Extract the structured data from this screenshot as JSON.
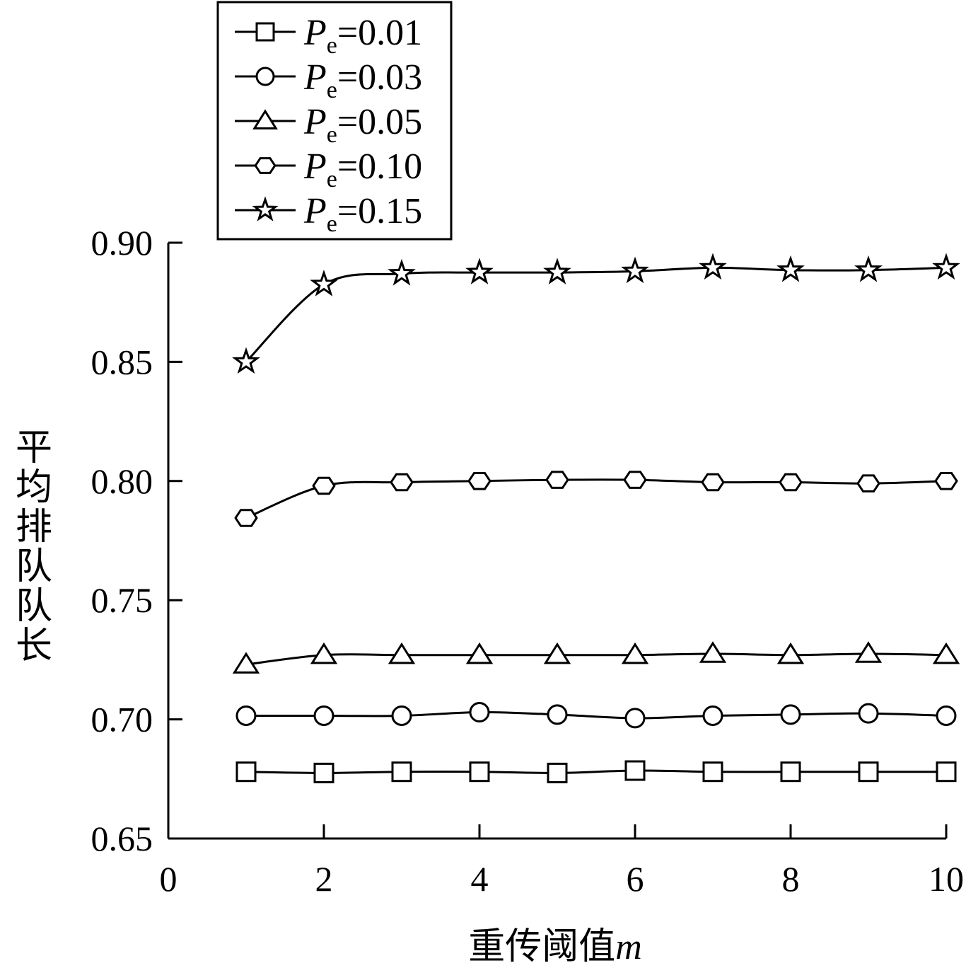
{
  "chart_data": {
    "type": "line",
    "title": "",
    "xlabel_text": "重传阈值",
    "xlabel_var": "m",
    "ylabel": "平均排队队长",
    "xlim": [
      0,
      10
    ],
    "ylim": [
      0.65,
      0.9
    ],
    "xticks": [
      0,
      2,
      4,
      6,
      8,
      10
    ],
    "yticks": [
      "0.65",
      "0.70",
      "0.75",
      "0.80",
      "0.85",
      "0.90"
    ],
    "grid": false,
    "legend_position": "top-left",
    "x": [
      1,
      2,
      3,
      4,
      5,
      6,
      7,
      8,
      9,
      10
    ],
    "series": [
      {
        "name": "Pe=0.01",
        "name_var": "P",
        "name_sub": "e",
        "name_rest": "=0.01",
        "marker": "square",
        "values": [
          0.678,
          0.6775,
          0.678,
          0.678,
          0.6775,
          0.6785,
          0.678,
          0.678,
          0.678,
          0.678
        ]
      },
      {
        "name": "Pe=0.03",
        "name_var": "P",
        "name_sub": "e",
        "name_rest": "=0.03",
        "marker": "circle",
        "values": [
          0.7015,
          0.7015,
          0.7015,
          0.703,
          0.702,
          0.7005,
          0.7015,
          0.702,
          0.7025,
          0.7015
        ]
      },
      {
        "name": "Pe=0.05",
        "name_var": "P",
        "name_sub": "e",
        "name_rest": "=0.05",
        "marker": "triangle",
        "values": [
          0.723,
          0.727,
          0.727,
          0.727,
          0.727,
          0.727,
          0.7275,
          0.727,
          0.7275,
          0.727
        ]
      },
      {
        "name": "Pe=0.10",
        "name_var": "P",
        "name_sub": "e",
        "name_rest": "=0.10",
        "marker": "hexagon",
        "values": [
          0.7845,
          0.798,
          0.7995,
          0.8,
          0.8005,
          0.8005,
          0.7995,
          0.7995,
          0.799,
          0.8
        ]
      },
      {
        "name": "Pe=0.15",
        "name_var": "P",
        "name_sub": "e",
        "name_rest": "=0.15",
        "marker": "star",
        "values": [
          0.85,
          0.8825,
          0.887,
          0.8875,
          0.8875,
          0.888,
          0.8895,
          0.8885,
          0.8885,
          0.8895
        ]
      }
    ]
  }
}
